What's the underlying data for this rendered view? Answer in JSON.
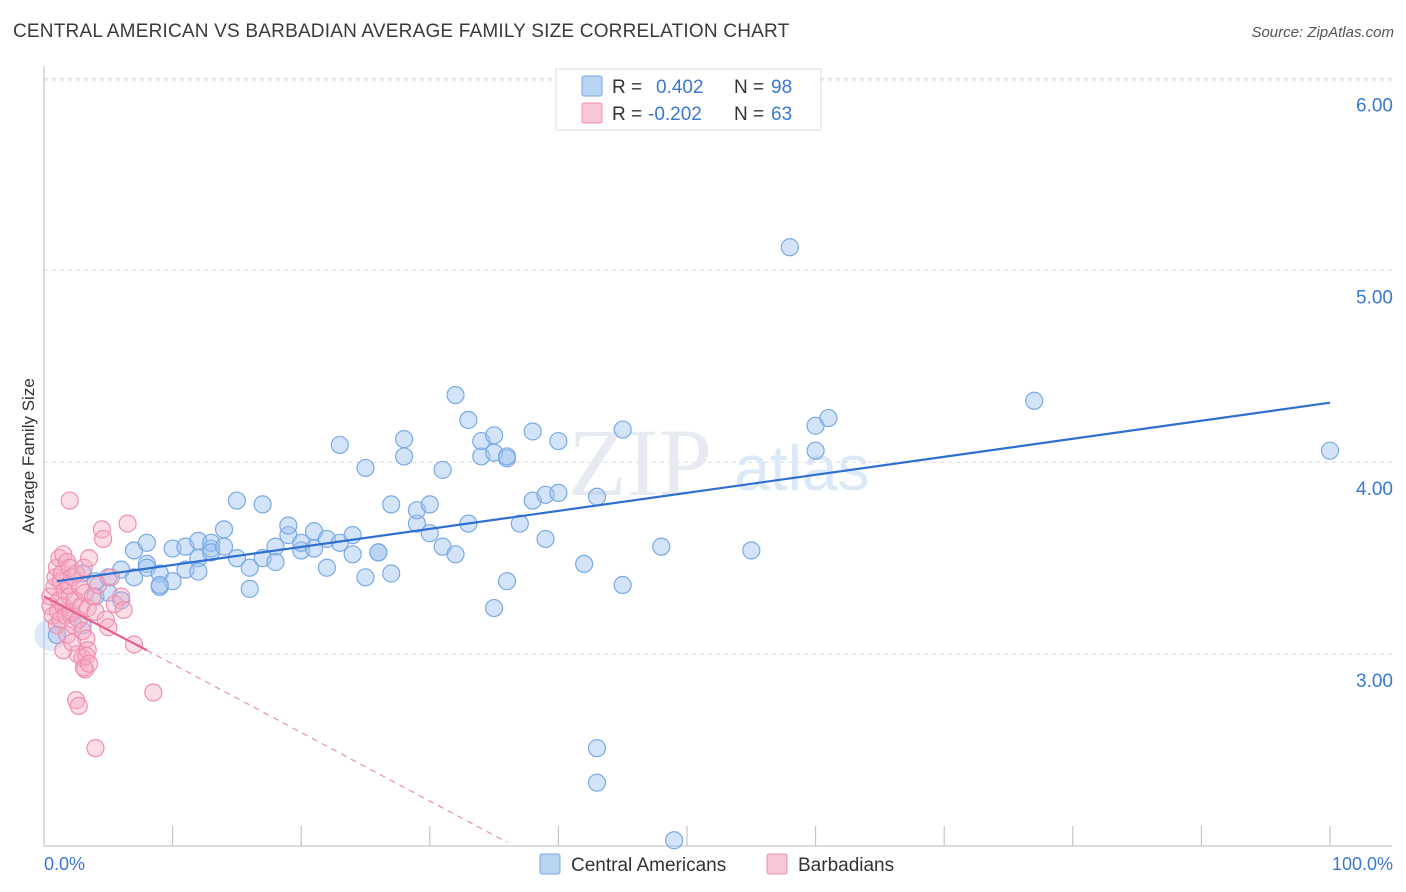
{
  "chart_data": {
    "type": "scatter",
    "title": "CENTRAL AMERICAN VS BARBADIAN AVERAGE FAMILY SIZE CORRELATION CHART",
    "source": "Source: ZipAtlas.com",
    "xlabel": "",
    "ylabel": "Average Family Size",
    "xlim": [
      0,
      100
    ],
    "ylim": [
      2.0,
      6.2
    ],
    "x_tick_labels": [
      "0.0%",
      "100.0%"
    ],
    "y_ticks": [
      3.0,
      4.0,
      5.0,
      6.0
    ],
    "y_tick_labels": [
      "3.00",
      "4.00",
      "5.00",
      "6.00"
    ],
    "grid": true,
    "watermark": "ZIPatlas",
    "legend": {
      "entries": [
        {
          "r_label": "R =",
          "r_value": "0.402",
          "n_label": "N =",
          "n_value": "98"
        },
        {
          "r_label": "R =",
          "r_value": "-0.202",
          "n_label": "N =",
          "n_value": "63"
        }
      ]
    },
    "series": [
      {
        "name": "Central Americans",
        "color": "#7aaae6",
        "fill": "rgba(160,196,240,0.45)",
        "trend_color": "#2f6fcf",
        "trend": {
          "x0": 1,
          "y0": 3.38,
          "x1": 100,
          "y1": 4.31
        },
        "points": [
          [
            3,
            3.15
          ],
          [
            3,
            3.42
          ],
          [
            4,
            3.38
          ],
          [
            5,
            3.4
          ],
          [
            4,
            3.3
          ],
          [
            6,
            3.44
          ],
          [
            7,
            3.54
          ],
          [
            7,
            3.4
          ],
          [
            8,
            3.58
          ],
          [
            8,
            3.47
          ],
          [
            8,
            3.45
          ],
          [
            9,
            3.42
          ],
          [
            9,
            3.35
          ],
          [
            10,
            3.38
          ],
          [
            10,
            3.55
          ],
          [
            11,
            3.44
          ],
          [
            11,
            3.56
          ],
          [
            12,
            3.59
          ],
          [
            12,
            3.5
          ],
          [
            12,
            3.43
          ],
          [
            13,
            3.55
          ],
          [
            13,
            3.58
          ],
          [
            13,
            3.53
          ],
          [
            14,
            3.65
          ],
          [
            14,
            3.56
          ],
          [
            15,
            3.8
          ],
          [
            15,
            3.5
          ],
          [
            16,
            3.45
          ],
          [
            16,
            3.34
          ],
          [
            17,
            3.78
          ],
          [
            17,
            3.5
          ],
          [
            18,
            3.56
          ],
          [
            18,
            3.48
          ],
          [
            19,
            3.62
          ],
          [
            19,
            3.67
          ],
          [
            20,
            3.54
          ],
          [
            20,
            3.58
          ],
          [
            21,
            3.64
          ],
          [
            21,
            3.55
          ],
          [
            22,
            3.45
          ],
          [
            22,
            3.6
          ],
          [
            23,
            4.09
          ],
          [
            23,
            3.58
          ],
          [
            24,
            3.52
          ],
          [
            24,
            3.62
          ],
          [
            25,
            3.4
          ],
          [
            25,
            3.97
          ],
          [
            26,
            3.53
          ],
          [
            26,
            3.53
          ],
          [
            27,
            3.42
          ],
          [
            27,
            3.78
          ],
          [
            28,
            4.03
          ],
          [
            28,
            4.12
          ],
          [
            29,
            3.68
          ],
          [
            29,
            3.75
          ],
          [
            30,
            3.63
          ],
          [
            30,
            3.78
          ],
          [
            31,
            3.96
          ],
          [
            31,
            3.56
          ],
          [
            32,
            3.52
          ],
          [
            32,
            4.35
          ],
          [
            33,
            4.22
          ],
          [
            33,
            3.68
          ],
          [
            34,
            4.03
          ],
          [
            34,
            4.11
          ],
          [
            35,
            4.05
          ],
          [
            35,
            4.14
          ],
          [
            36,
            4.02
          ],
          [
            36,
            4.03
          ],
          [
            37,
            3.68
          ],
          [
            38,
            3.8
          ],
          [
            38,
            4.16
          ],
          [
            39,
            3.83
          ],
          [
            39,
            3.6
          ],
          [
            40,
            4.11
          ],
          [
            40,
            3.84
          ],
          [
            42,
            3.47
          ],
          [
            43,
            3.82
          ],
          [
            45,
            4.17
          ],
          [
            45,
            3.36
          ],
          [
            48,
            3.56
          ],
          [
            55,
            3.54
          ],
          [
            58,
            5.12
          ],
          [
            60,
            4.19
          ],
          [
            60,
            4.06
          ],
          [
            61,
            4.23
          ],
          [
            77,
            4.32
          ],
          [
            100,
            4.06
          ],
          [
            36,
            3.38
          ],
          [
            43,
            2.51
          ],
          [
            43,
            2.33
          ],
          [
            35,
            3.24
          ],
          [
            49,
            2.03
          ],
          [
            1,
            3.1
          ],
          [
            2,
            3.21
          ],
          [
            5,
            3.32
          ],
          [
            6,
            3.28
          ],
          [
            9,
            3.36
          ]
        ]
      },
      {
        "name": "Barbadians",
        "color": "#f08fb0",
        "fill": "rgba(246,170,196,0.40)",
        "trend_color": "#e8608c",
        "trend": {
          "x0": 0,
          "y0": 3.3,
          "x1": 8,
          "y1": 3.02
        },
        "trend_ext": {
          "x0": 8,
          "y0": 3.02,
          "x1": 36,
          "y1": 2.02
        },
        "points": [
          [
            0.5,
            3.25
          ],
          [
            0.5,
            3.3
          ],
          [
            0.7,
            3.2
          ],
          [
            0.8,
            3.35
          ],
          [
            0.9,
            3.4
          ],
          [
            1.0,
            3.15
          ],
          [
            1.0,
            3.45
          ],
          [
            1.1,
            3.22
          ],
          [
            1.2,
            3.28
          ],
          [
            1.2,
            3.5
          ],
          [
            1.3,
            3.38
          ],
          [
            1.3,
            3.18
          ],
          [
            1.4,
            3.42
          ],
          [
            1.5,
            3.25
          ],
          [
            1.5,
            3.52
          ],
          [
            1.6,
            3.33
          ],
          [
            1.7,
            3.2
          ],
          [
            1.8,
            3.48
          ],
          [
            1.8,
            3.1
          ],
          [
            1.9,
            3.36
          ],
          [
            2.0,
            3.3
          ],
          [
            2.0,
            3.45
          ],
          [
            2.1,
            3.22
          ],
          [
            2.2,
            3.4
          ],
          [
            2.3,
            3.15
          ],
          [
            2.4,
            3.28
          ],
          [
            2.5,
            3.42
          ],
          [
            2.6,
            3.0
          ],
          [
            2.7,
            3.18
          ],
          [
            2.8,
            3.35
          ],
          [
            2.9,
            3.25
          ],
          [
            3.0,
            3.12
          ],
          [
            3.1,
            3.45
          ],
          [
            3.2,
            3.32
          ],
          [
            3.3,
            3.08
          ],
          [
            3.4,
            3.24
          ],
          [
            3.5,
            3.5
          ],
          [
            2.5,
            2.76
          ],
          [
            2.7,
            2.73
          ],
          [
            3.0,
            2.98
          ],
          [
            3.2,
            2.92
          ],
          [
            3.4,
            3.02
          ],
          [
            2.0,
            3.8
          ],
          [
            4.5,
            3.65
          ],
          [
            4.6,
            3.6
          ],
          [
            6.5,
            3.68
          ],
          [
            7.0,
            3.05
          ],
          [
            8.5,
            2.8
          ],
          [
            3.8,
            3.3
          ],
          [
            4.0,
            3.22
          ],
          [
            4.2,
            3.36
          ],
          [
            4.8,
            3.18
          ],
          [
            5.0,
            3.14
          ],
          [
            5.5,
            3.26
          ],
          [
            6.0,
            3.3
          ],
          [
            3.1,
            2.93
          ],
          [
            3.3,
            2.99
          ],
          [
            3.5,
            2.95
          ],
          [
            4.0,
            2.51
          ],
          [
            1.5,
            3.02
          ],
          [
            2.2,
            3.06
          ],
          [
            6.2,
            3.23
          ],
          [
            5.2,
            3.4
          ]
        ]
      }
    ],
    "bottom_legend": [
      "Central Americans",
      "Barbadians"
    ]
  }
}
